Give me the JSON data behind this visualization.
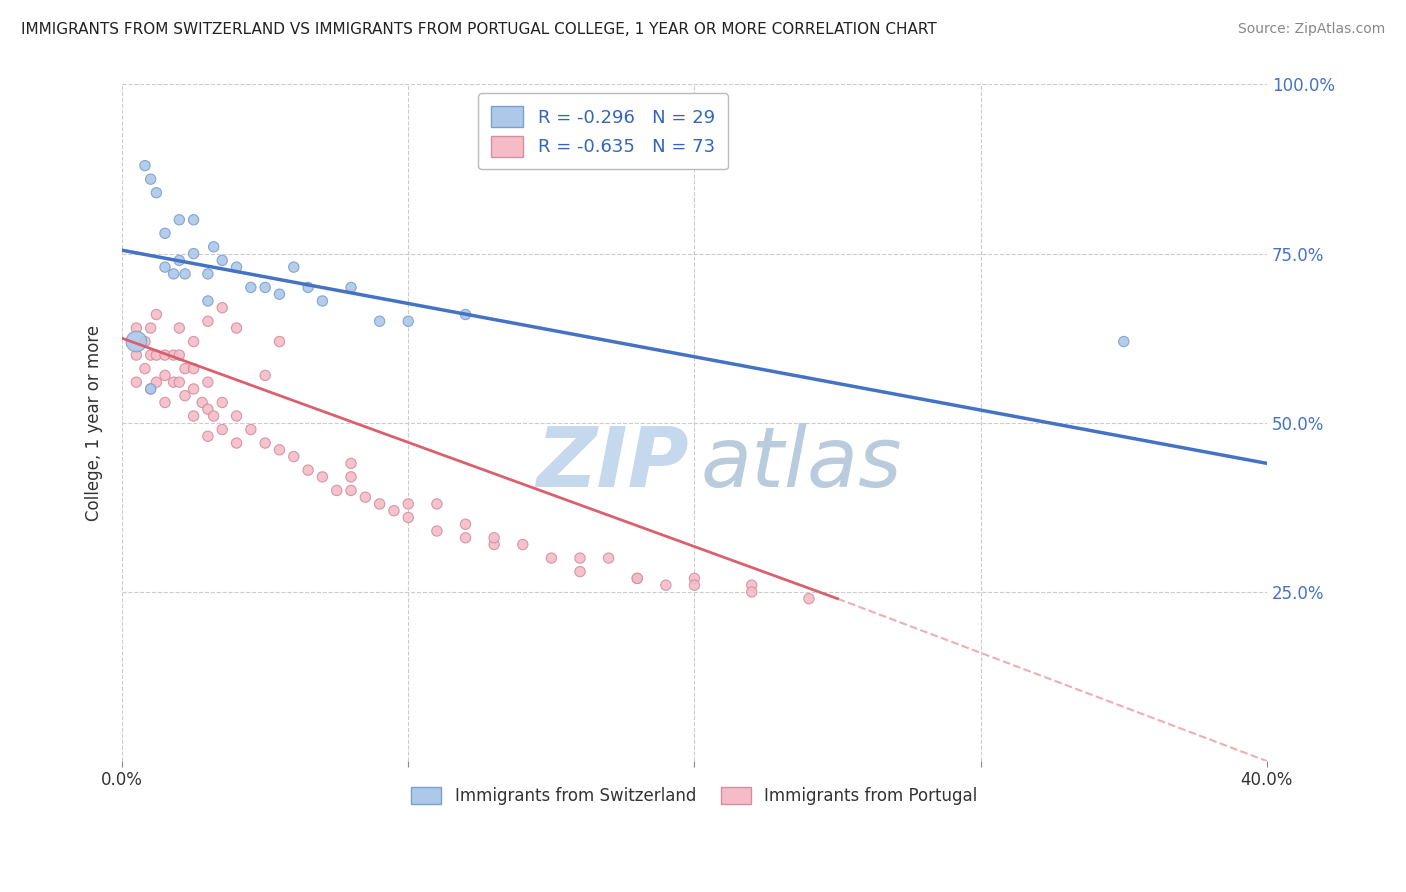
{
  "title": "IMMIGRANTS FROM SWITZERLAND VS IMMIGRANTS FROM PORTUGAL COLLEGE, 1 YEAR OR MORE CORRELATION CHART",
  "source": "Source: ZipAtlas.com",
  "ylabel": "College, 1 year or more",
  "xlim": [
    0.0,
    0.4
  ],
  "ylim": [
    0.0,
    1.0
  ],
  "xticks": [
    0.0,
    0.1,
    0.2,
    0.3,
    0.4
  ],
  "xtick_labels": [
    "0.0%",
    "",
    "",
    "",
    "40.0%"
  ],
  "ytick_labels_right": [
    "100.0%",
    "75.0%",
    "50.0%",
    "25.0%",
    ""
  ],
  "yticks": [
    1.0,
    0.75,
    0.5,
    0.25,
    0.0
  ],
  "legend_blue_text": "R = -0.296   N = 29",
  "legend_pink_text": "R = -0.635   N = 73",
  "legend_blue_color": "#adc8e8",
  "legend_pink_color": "#f5bcc8",
  "blue_line_color": "#4472c4",
  "pink_line_color": "#d9606e",
  "blue_dot_color": "#adc8e8",
  "pink_dot_color": "#f5bcc8",
  "blue_dot_edge": "#7aa0cc",
  "pink_dot_edge": "#d090a0",
  "watermark_zip_color": "#c5d8ee",
  "watermark_atlas_color": "#b8ccdd",
  "background_color": "#ffffff",
  "grid_color": "#cccccc",
  "blue_scatter_x": [
    0.005,
    0.008,
    0.01,
    0.012,
    0.015,
    0.015,
    0.018,
    0.02,
    0.02,
    0.022,
    0.025,
    0.025,
    0.03,
    0.03,
    0.032,
    0.035,
    0.04,
    0.045,
    0.05,
    0.055,
    0.06,
    0.065,
    0.07,
    0.08,
    0.09,
    0.1,
    0.12,
    0.35,
    0.01
  ],
  "blue_scatter_y": [
    0.62,
    0.88,
    0.86,
    0.84,
    0.78,
    0.73,
    0.72,
    0.8,
    0.74,
    0.72,
    0.8,
    0.75,
    0.72,
    0.68,
    0.76,
    0.74,
    0.73,
    0.7,
    0.7,
    0.69,
    0.73,
    0.7,
    0.68,
    0.7,
    0.65,
    0.65,
    0.66,
    0.62,
    0.55
  ],
  "blue_scatter_size": [
    220,
    55,
    55,
    55,
    55,
    55,
    55,
    55,
    55,
    55,
    55,
    55,
    55,
    55,
    55,
    55,
    55,
    55,
    55,
    55,
    55,
    55,
    55,
    55,
    55,
    55,
    55,
    55,
    55
  ],
  "pink_scatter_x": [
    0.005,
    0.005,
    0.005,
    0.008,
    0.008,
    0.01,
    0.01,
    0.01,
    0.012,
    0.012,
    0.015,
    0.015,
    0.015,
    0.018,
    0.018,
    0.02,
    0.02,
    0.022,
    0.022,
    0.025,
    0.025,
    0.025,
    0.028,
    0.03,
    0.03,
    0.03,
    0.032,
    0.035,
    0.035,
    0.04,
    0.04,
    0.045,
    0.05,
    0.055,
    0.06,
    0.065,
    0.07,
    0.075,
    0.08,
    0.085,
    0.09,
    0.095,
    0.1,
    0.11,
    0.12,
    0.13,
    0.14,
    0.15,
    0.16,
    0.17,
    0.18,
    0.19,
    0.2,
    0.22,
    0.24,
    0.08,
    0.11,
    0.12,
    0.13,
    0.16,
    0.18,
    0.2,
    0.22,
    0.012,
    0.02,
    0.025,
    0.03,
    0.035,
    0.04,
    0.05,
    0.055,
    0.08,
    0.1
  ],
  "pink_scatter_y": [
    0.64,
    0.6,
    0.56,
    0.62,
    0.58,
    0.64,
    0.6,
    0.55,
    0.6,
    0.56,
    0.6,
    0.57,
    0.53,
    0.6,
    0.56,
    0.6,
    0.56,
    0.58,
    0.54,
    0.58,
    0.55,
    0.51,
    0.53,
    0.56,
    0.52,
    0.48,
    0.51,
    0.53,
    0.49,
    0.51,
    0.47,
    0.49,
    0.47,
    0.46,
    0.45,
    0.43,
    0.42,
    0.4,
    0.4,
    0.39,
    0.38,
    0.37,
    0.36,
    0.34,
    0.33,
    0.32,
    0.32,
    0.3,
    0.28,
    0.3,
    0.27,
    0.26,
    0.27,
    0.26,
    0.24,
    0.42,
    0.38,
    0.35,
    0.33,
    0.3,
    0.27,
    0.26,
    0.25,
    0.66,
    0.64,
    0.62,
    0.65,
    0.67,
    0.64,
    0.57,
    0.62,
    0.44,
    0.38
  ],
  "pink_scatter_size": [
    55,
    55,
    55,
    55,
    55,
    55,
    55,
    55,
    55,
    55,
    55,
    55,
    55,
    55,
    55,
    55,
    55,
    55,
    55,
    55,
    55,
    55,
    55,
    55,
    55,
    55,
    55,
    55,
    55,
    55,
    55,
    55,
    55,
    55,
    55,
    55,
    55,
    55,
    55,
    55,
    55,
    55,
    55,
    55,
    55,
    55,
    55,
    55,
    55,
    55,
    55,
    55,
    55,
    55,
    55,
    55,
    55,
    55,
    55,
    55,
    55,
    55,
    55,
    55,
    55,
    55,
    55,
    55,
    55,
    55,
    55,
    55,
    55
  ],
  "blue_trend_x0": 0.0,
  "blue_trend_y0": 0.755,
  "blue_trend_x1": 0.4,
  "blue_trend_y1": 0.44,
  "pink_trend_solid_x0": 0.0,
  "pink_trend_solid_y0": 0.625,
  "pink_trend_solid_x1": 0.25,
  "pink_trend_solid_y1": 0.24,
  "pink_trend_dash_x0": 0.25,
  "pink_trend_dash_y0": 0.24,
  "pink_trend_dash_x1": 0.4,
  "pink_trend_dash_y1": 0.0
}
